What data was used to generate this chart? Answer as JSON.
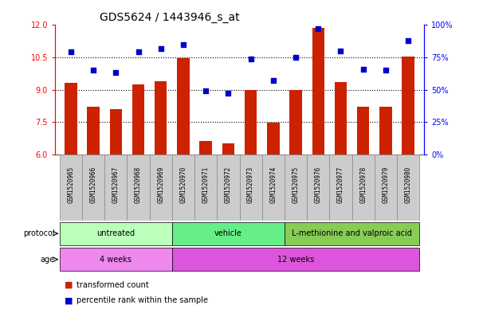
{
  "title": "GDS5624 / 1443946_s_at",
  "samples": [
    "GSM1520965",
    "GSM1520966",
    "GSM1520967",
    "GSM1520968",
    "GSM1520969",
    "GSM1520970",
    "GSM1520971",
    "GSM1520972",
    "GSM1520973",
    "GSM1520974",
    "GSM1520975",
    "GSM1520976",
    "GSM1520977",
    "GSM1520978",
    "GSM1520979",
    "GSM1520980"
  ],
  "bar_values": [
    9.3,
    8.2,
    8.1,
    9.25,
    9.4,
    10.45,
    6.6,
    6.5,
    9.0,
    7.45,
    9.0,
    11.85,
    9.35,
    8.2,
    8.2,
    10.55
  ],
  "dot_values": [
    79,
    65,
    63,
    79,
    82,
    85,
    49,
    47,
    74,
    57,
    75,
    97,
    80,
    66,
    65,
    88
  ],
  "bar_color": "#cc2200",
  "dot_color": "#0000cc",
  "ylim_left": [
    6,
    12
  ],
  "ylim_right": [
    0,
    100
  ],
  "yticks_left": [
    6,
    7.5,
    9,
    10.5,
    12
  ],
  "yticks_right": [
    0,
    25,
    50,
    75,
    100
  ],
  "ytick_labels_right": [
    "0%",
    "25%",
    "50%",
    "75%",
    "100%"
  ],
  "dotted_lines": [
    7.5,
    9,
    10.5
  ],
  "protocol_groups": [
    {
      "label": "untreated",
      "start": 0,
      "end": 4,
      "color": "#bbffbb"
    },
    {
      "label": "vehicle",
      "start": 5,
      "end": 9,
      "color": "#66ee88"
    },
    {
      "label": "L-methionine and valproic acid",
      "start": 10,
      "end": 15,
      "color": "#88cc55"
    }
  ],
  "age_groups": [
    {
      "label": "4 weeks",
      "start": 0,
      "end": 4,
      "color": "#ee88ee"
    },
    {
      "label": "12 weeks",
      "start": 5,
      "end": 15,
      "color": "#dd55dd"
    }
  ],
  "protocol_label": "protocol",
  "age_label": "age",
  "legend_bar_label": "transformed count",
  "legend_dot_label": "percentile rank within the sample",
  "bar_width": 0.55,
  "title_fontsize": 10,
  "tick_fontsize": 7,
  "sample_fontsize": 5.5,
  "row_label_fontsize": 7,
  "group_label_fontsize": 7,
  "legend_fontsize": 7,
  "sample_bg_color": "#cccccc",
  "sample_border_color": "#888888"
}
